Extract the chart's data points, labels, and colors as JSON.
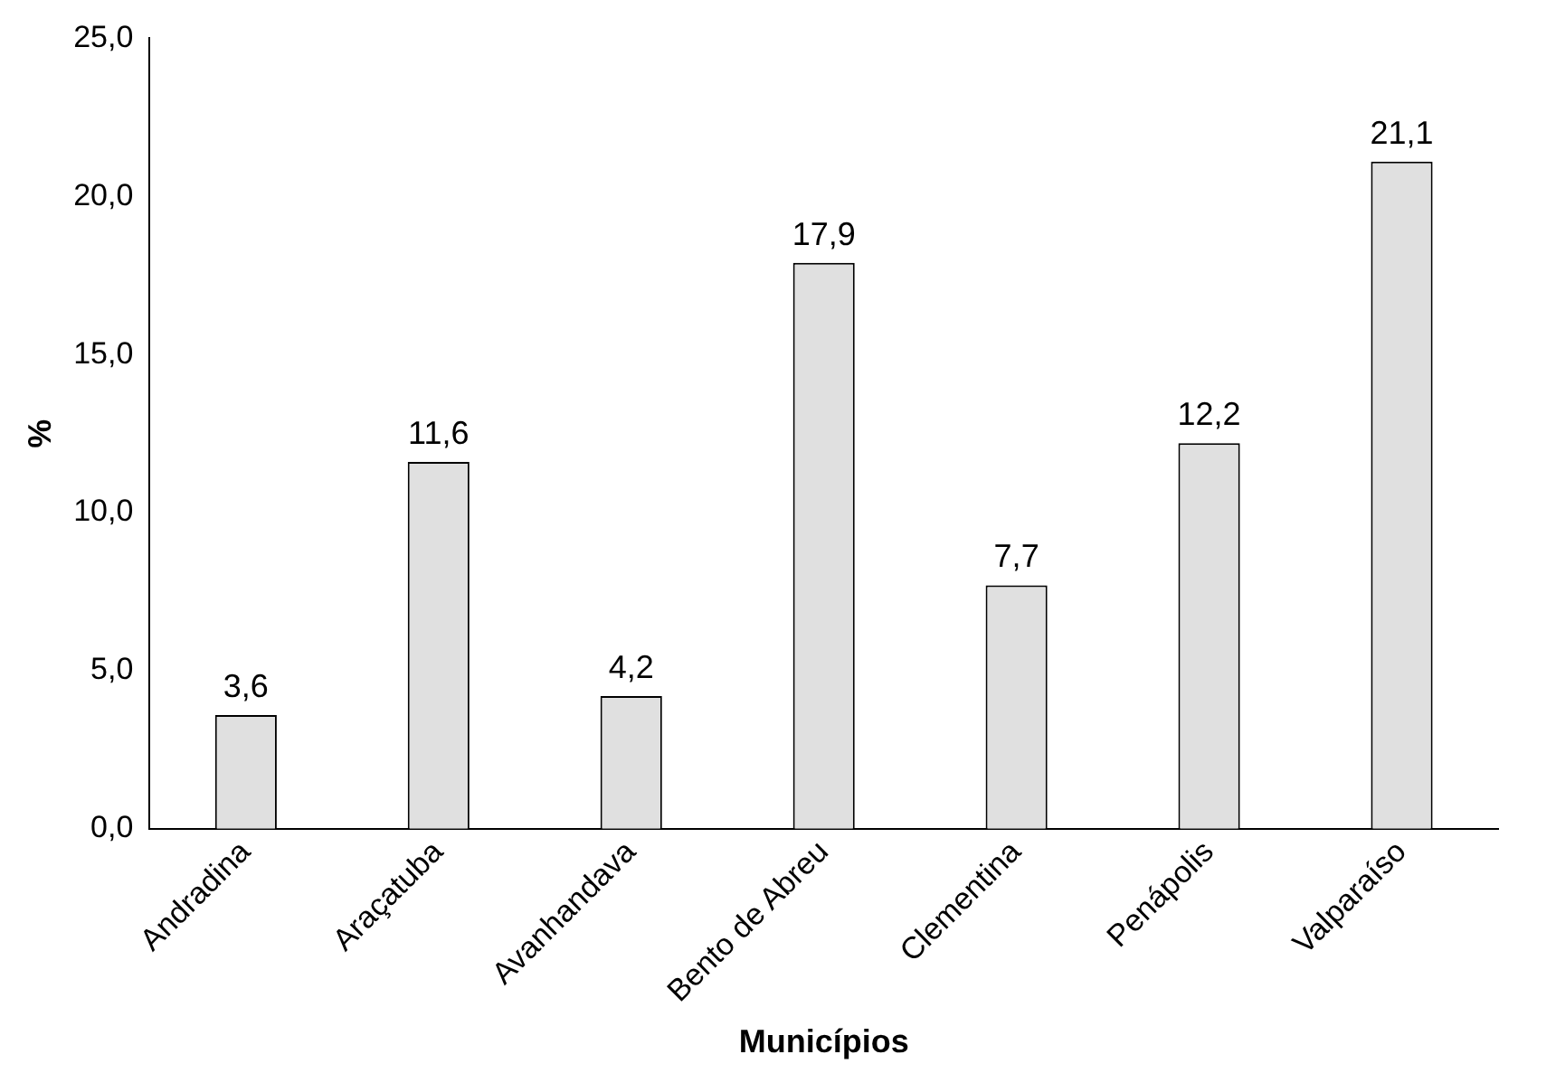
{
  "chart_data": {
    "type": "bar",
    "ylabel": "%",
    "xlabel": "Municípios",
    "categories": [
      "Andradina",
      "Araçatuba",
      "Avanhandava",
      "Bento de Abreu",
      "Clementina",
      "Penápolis",
      "Valparaíso"
    ],
    "values": [
      3.6,
      11.6,
      4.2,
      17.9,
      7.7,
      12.2,
      21.1
    ],
    "value_labels": [
      "3,6",
      "11,6",
      "4,2",
      "17,9",
      "7,7",
      "12,2",
      "21,1"
    ],
    "color": "#e0e0e0",
    "ylim": [
      0,
      25
    ],
    "yticks": [
      {
        "value": 0,
        "label": "0,0"
      },
      {
        "value": 5,
        "label": "5,0"
      },
      {
        "value": 10,
        "label": "10,0"
      },
      {
        "value": 15,
        "label": "15,0"
      },
      {
        "value": 20,
        "label": "20,0"
      },
      {
        "value": 25,
        "label": "25,0"
      }
    ],
    "grid": false,
    "legend": false
  }
}
